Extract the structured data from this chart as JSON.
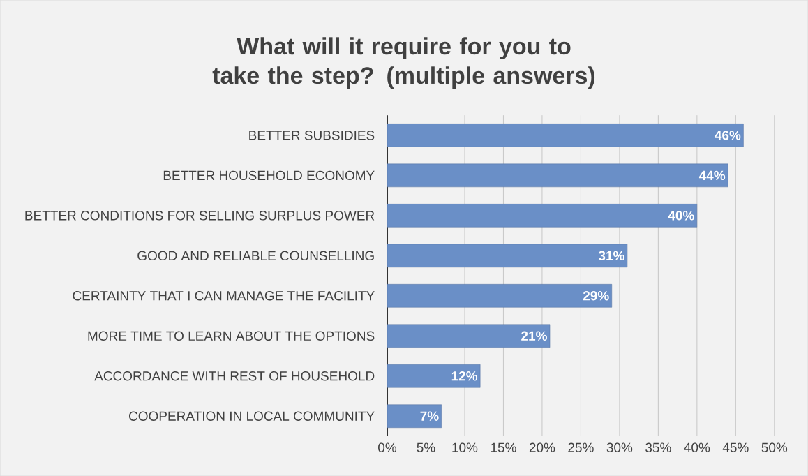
{
  "chart_data": {
    "type": "bar",
    "orientation": "horizontal",
    "title": "What will it require for you to take the step? (multiple answers)",
    "categories": [
      "BETTER SUBSIDIES",
      "BETTER HOUSEHOLD ECONOMY",
      "BETTER CONDITIONS FOR SELLING SURPLUS POWER",
      "GOOD AND RELIABLE COUNSELLING",
      "CERTAINTY THAT I CAN MANAGE THE FACILITY",
      "MORE TIME TO LEARN ABOUT THE OPTIONS",
      "ACCORDANCE WITH REST OF HOUSEHOLD",
      "COOPERATION IN LOCAL COMMUNITY"
    ],
    "values": [
      46,
      44,
      40,
      31,
      29,
      21,
      12,
      7
    ],
    "value_labels": [
      "46%",
      "44%",
      "40%",
      "31%",
      "29%",
      "21%",
      "12%",
      "7%"
    ],
    "color": "#6a8fc7",
    "xlim": [
      0,
      50
    ],
    "xticks": [
      {
        "value": 0,
        "label": "0%"
      },
      {
        "value": 5,
        "label": "5%"
      },
      {
        "value": 10,
        "label": "10%"
      },
      {
        "value": 15,
        "label": "15%"
      },
      {
        "value": 20,
        "label": "20%"
      },
      {
        "value": 25,
        "label": "25%"
      },
      {
        "value": 30,
        "label": "30%"
      },
      {
        "value": 35,
        "label": "35%"
      },
      {
        "value": 40,
        "label": "40%"
      },
      {
        "value": 45,
        "label": "45%"
      },
      {
        "value": 50,
        "label": "50%"
      }
    ],
    "grid": "x"
  }
}
